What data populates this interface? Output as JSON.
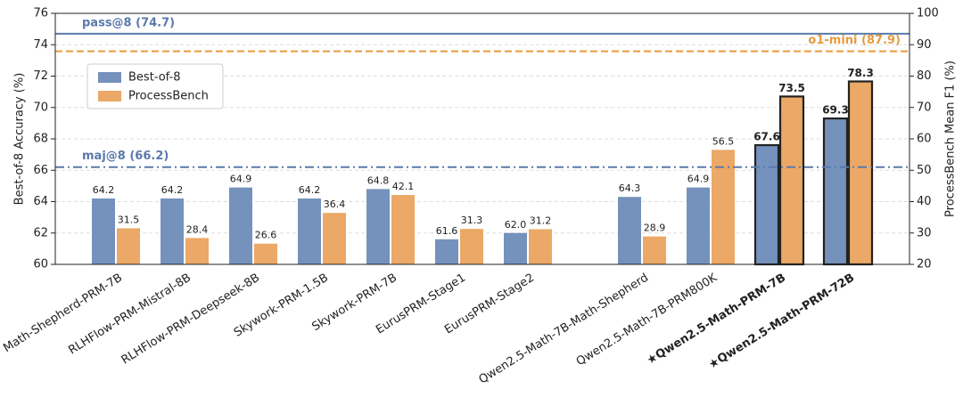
{
  "chart_data": {
    "type": "bar",
    "y_label": "Best-of-8 Accuracy (%)",
    "y2_label": "ProcessBench Mean F1 (%)",
    "categories": [
      "Math-Shepherd-PRM-7B",
      "RLHFlow-PRM-Mistral-8B",
      "RLHFlow-PRM-Deepseek-8B",
      "Skywork-PRM-1.5B",
      "Skywork-PRM-7B",
      "EurusPRM-Stage1",
      "EurusPRM-Stage2",
      "Qwen2.5-Math-7B-Math-Shepherd",
      "Qwen2.5-Math-7B-PRM800K",
      "★Qwen2.5-Math-PRM-7B",
      "★Qwen2.5-Math-PRM-72B"
    ],
    "bold": [
      false,
      false,
      false,
      false,
      false,
      false,
      false,
      false,
      false,
      true,
      true
    ],
    "series": [
      {
        "name": "Best-of-8",
        "color": "#7592bd",
        "values": [
          64.2,
          64.2,
          64.9,
          64.2,
          64.8,
          61.6,
          62.0,
          64.3,
          64.9,
          67.6,
          69.3
        ],
        "value_labels": [
          "64.2",
          "64.2",
          "64.9",
          "64.2",
          "64.8",
          "61.6",
          "62.0",
          "64.3",
          "64.9",
          "67.6",
          "69.3"
        ]
      },
      {
        "name": "ProcessBench",
        "color": "#eba866",
        "axis": "y2",
        "values": [
          31.5,
          28.4,
          26.6,
          36.4,
          42.1,
          31.3,
          31.2,
          28.9,
          56.5,
          73.5,
          78.3
        ],
        "value_labels": [
          "31.5",
          "28.4",
          "26.6",
          "36.4",
          "42.1",
          "31.3",
          "31.2",
          "28.9",
          "56.5",
          "73.5",
          "78.3"
        ]
      }
    ],
    "reference_lines": [
      {
        "label": "pass@8 (74.7)",
        "value": 74.7,
        "color": "#5a7aab",
        "style": "solid"
      },
      {
        "label": "o1-mini (87.9)",
        "value": 87.9,
        "axis": "y2",
        "color": "#e69a3e",
        "style": "dashed"
      },
      {
        "label": "maj@8 (66.2)",
        "value": 66.2,
        "color": "#5a7aab",
        "style": "dashdot"
      }
    ],
    "ylim": [
      60,
      76
    ],
    "yticks": [
      60,
      62,
      64,
      66,
      68,
      70,
      72,
      74,
      76
    ],
    "y2lim": [
      20,
      100
    ],
    "y2ticks": [
      20,
      30,
      40,
      50,
      60,
      70,
      80,
      90,
      100
    ],
    "grid": true,
    "legend": "upper left"
  }
}
